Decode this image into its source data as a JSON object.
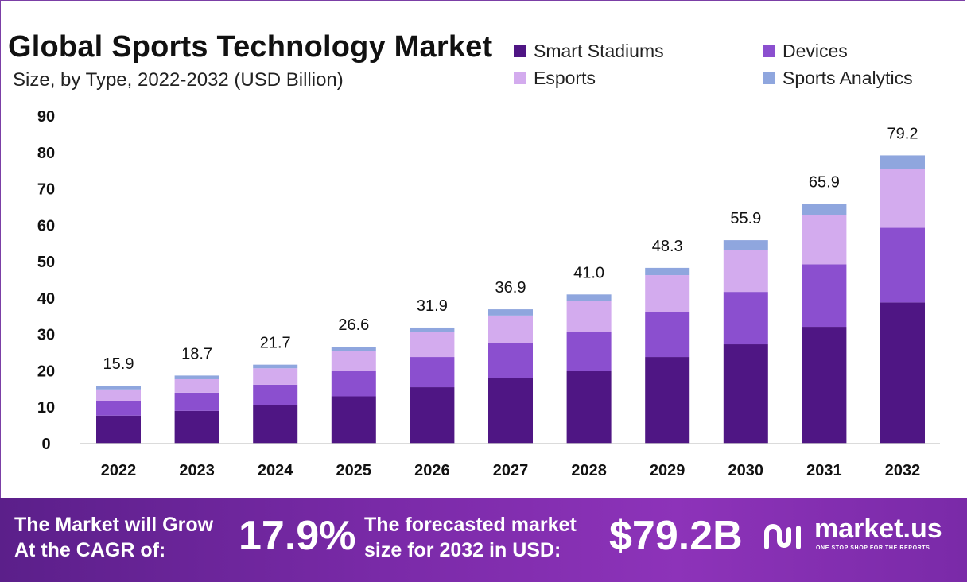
{
  "title": "Global Sports Technology Market",
  "subtitle": "Size, by Type, 2022-2032 (USD Billion)",
  "legend": [
    {
      "label": "Smart Stadiums",
      "color": "#4f1684"
    },
    {
      "label": "Devices",
      "color": "#8b4fcf"
    },
    {
      "label": "Esports",
      "color": "#d3abee"
    },
    {
      "label": "Sports Analytics",
      "color": "#8fa6de"
    }
  ],
  "chart_data": {
    "type": "bar",
    "stacked": true,
    "categories": [
      "2022",
      "2023",
      "2024",
      "2025",
      "2026",
      "2027",
      "2028",
      "2029",
      "2030",
      "2031",
      "2032"
    ],
    "series": [
      {
        "name": "Smart Stadiums",
        "color": "#4f1684",
        "values": [
          7.7,
          9.0,
          10.5,
          13.0,
          15.5,
          18.0,
          20.0,
          23.8,
          27.3,
          32.1,
          38.8
        ]
      },
      {
        "name": "Devices",
        "color": "#8b4fcf",
        "values": [
          4.1,
          5.0,
          5.7,
          7.0,
          8.3,
          9.6,
          10.6,
          12.3,
          14.4,
          17.2,
          20.5
        ]
      },
      {
        "name": "Esports",
        "color": "#d3abee",
        "values": [
          3.1,
          3.7,
          4.5,
          5.4,
          6.8,
          7.6,
          8.6,
          10.2,
          11.5,
          13.4,
          16.2
        ]
      },
      {
        "name": "Sports Analytics",
        "color": "#8fa6de",
        "values": [
          1.0,
          1.0,
          1.0,
          1.2,
          1.3,
          1.7,
          1.8,
          2.0,
          2.7,
          3.2,
          3.7
        ]
      }
    ],
    "totals": [
      "15.9",
      "18.7",
      "21.7",
      "26.6",
      "31.9",
      "36.9",
      "41.0",
      "48.3",
      "55.9",
      "65.9",
      "79.2"
    ],
    "ylim": [
      0,
      90
    ],
    "yticks": [
      0,
      10,
      20,
      30,
      40,
      50,
      60,
      70,
      80,
      90
    ],
    "grid": false
  },
  "footer": {
    "cagr_label_line1": "The Market will Grow",
    "cagr_label_line2": "At the CAGR of:",
    "cagr_value": "17.9%",
    "forecast_label_line1": "The forecasted market",
    "forecast_label_line2": "size for 2032 in USD:",
    "forecast_value": "$79.2B",
    "brand_name": "market.us",
    "brand_tagline": "ONE STOP SHOP FOR THE REPORTS"
  }
}
